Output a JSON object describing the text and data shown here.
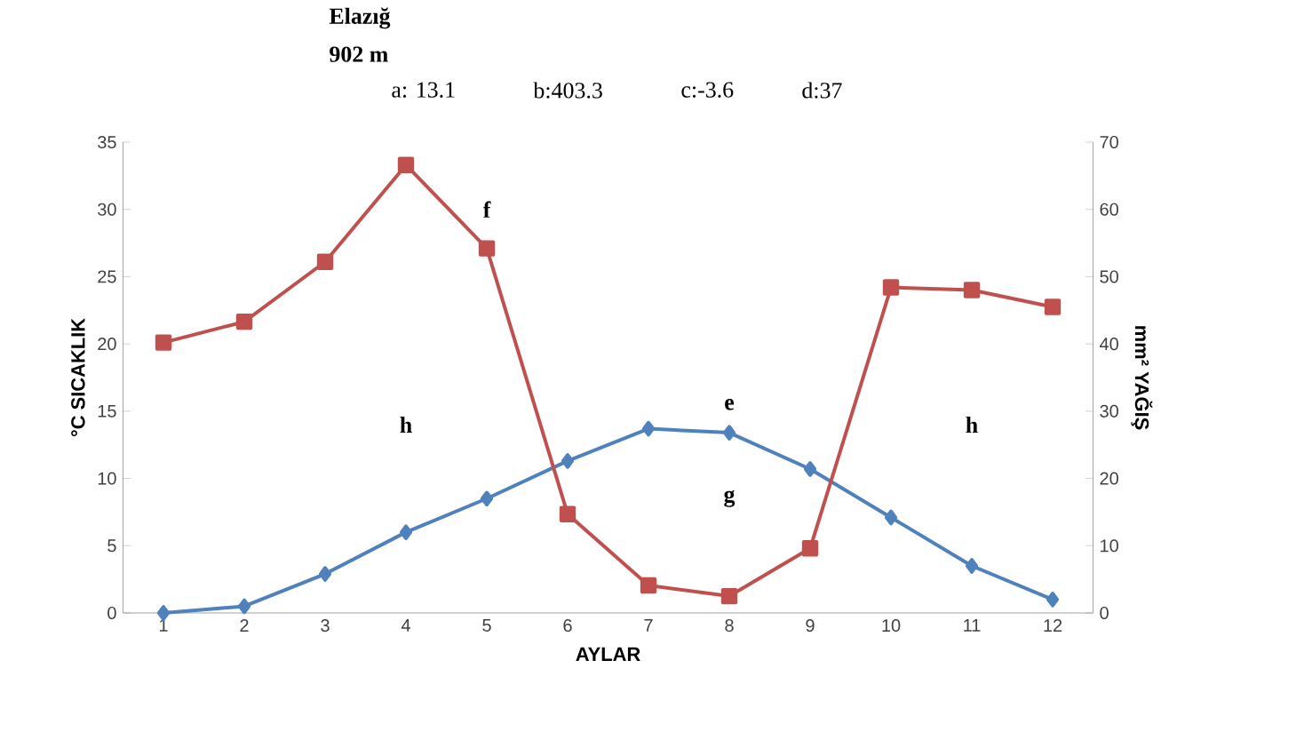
{
  "chart_data": {
    "type": "line",
    "title": "Elazığ",
    "subtitle": "902 m",
    "xlabel": "AYLAR",
    "ylabel": "°C SICAKLIK",
    "y2label": "mm² YAĞIŞ",
    "categories": [
      "1",
      "2",
      "3",
      "4",
      "5",
      "6",
      "7",
      "8",
      "9",
      "10",
      "11",
      "12"
    ],
    "ylim": [
      0,
      35
    ],
    "yticks": [
      0,
      5,
      10,
      15,
      20,
      25,
      30,
      35
    ],
    "y2lim": [
      0,
      70
    ],
    "y2ticks": [
      0,
      10,
      20,
      30,
      40,
      50,
      60,
      70
    ],
    "grid": false,
    "line_style": "solid",
    "series": [
      {
        "color": "#4f81bd",
        "marker": "diamond",
        "values": [
          0,
          0.5,
          2.9,
          6.0,
          8.5,
          11.3,
          13.7,
          13.4,
          10.7,
          7.1,
          3.5,
          1.0
        ]
      },
      {
        "color": "#c0504d",
        "marker": "square",
        "axis": "y2",
        "values": [
          40.2,
          43.3,
          52.2,
          66.6,
          54.2,
          14.7,
          4.1,
          2.5,
          9.6,
          48.4,
          48,
          45.5
        ]
      }
    ],
    "annotations": [
      "a: 13.1",
      "b:403.3",
      "c:-3.6",
      "d:37",
      "f",
      "h",
      "e",
      "g",
      "h"
    ]
  }
}
